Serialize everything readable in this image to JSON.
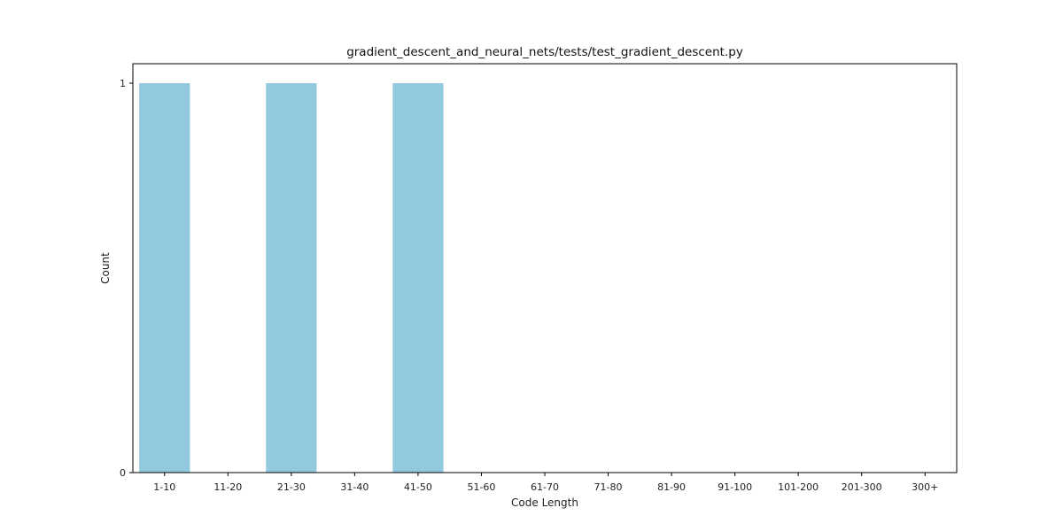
{
  "chart_data": {
    "type": "bar",
    "title": "gradient_descent_and_neural_nets/tests/test_gradient_descent.py",
    "xlabel": "Code Length",
    "ylabel": "Count",
    "categories": [
      "1-10",
      "11-20",
      "21-30",
      "31-40",
      "41-50",
      "51-60",
      "61-70",
      "71-80",
      "81-90",
      "91-100",
      "101-200",
      "201-300",
      "300+"
    ],
    "values": [
      1,
      0,
      1,
      0,
      1,
      0,
      0,
      0,
      0,
      0,
      0,
      0,
      0
    ],
    "ylim": [
      0,
      1.05
    ],
    "yticks": [
      0,
      1
    ],
    "grid": false,
    "bar_color": "#92c9de"
  }
}
